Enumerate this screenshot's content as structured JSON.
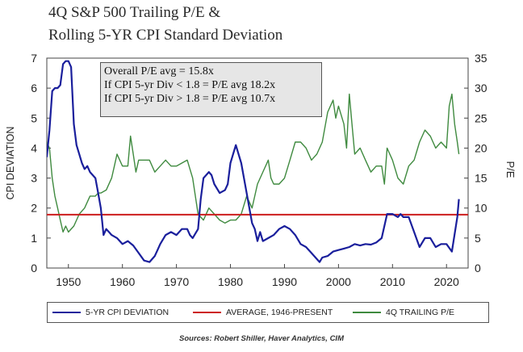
{
  "title": {
    "line1": "4Q S&P 500 Trailing P/E &",
    "line2": "Rolling 5-YR CPI Standard Deviation"
  },
  "annotation": [
    "Overall P/E avg = 15.8x",
    "If CPI 5-yr Div < 1.8 = P/E avg 18.2x",
    "If CPI 5-yr Div > 1.8 = P/E avg 10.7x"
  ],
  "legend": [
    {
      "label": "5-YR CPI DEVIATION",
      "color": "#1a1f9c"
    },
    {
      "label": "AVERAGE, 1946-PRESENT",
      "color": "#cc1c1c"
    },
    {
      "label": "4Q TRAILING P/E",
      "color": "#3f8a3f"
    }
  ],
  "source": "Sources:  Robert Shiller, Haver Analytics, CIM",
  "chart_data": {
    "type": "line",
    "xlim": [
      1946,
      2024
    ],
    "x_ticks": [
      1950,
      1960,
      1970,
      1980,
      1990,
      2000,
      2010,
      2020
    ],
    "left_axis": {
      "label": "CPI DEVIATION",
      "ylim": [
        0,
        7
      ],
      "ticks": [
        0,
        1,
        2,
        3,
        4,
        5,
        6,
        7
      ]
    },
    "right_axis": {
      "label": "P/E",
      "ylim": [
        0,
        35
      ],
      "ticks": [
        0,
        5,
        10,
        15,
        20,
        25,
        30,
        35
      ]
    },
    "grid": false,
    "legend_position": "bottom",
    "series": [
      {
        "name": "5-YR CPI DEVIATION",
        "axis": "left",
        "color": "#1a1f9c",
        "x": [
          1946,
          1946.5,
          1947,
          1947.5,
          1948,
          1948.5,
          1949,
          1949.5,
          1950,
          1950.5,
          1951,
          1951.5,
          1952,
          1952.5,
          1953,
          1953.5,
          1954,
          1955,
          1955.5,
          1956,
          1956.5,
          1957,
          1957.5,
          1958,
          1959,
          1960,
          1961,
          1962,
          1963,
          1964,
          1965,
          1966,
          1966.5,
          1967,
          1968,
          1969,
          1970,
          1971,
          1972,
          1972.5,
          1973,
          1974,
          1974.5,
          1975,
          1976,
          1976.5,
          1977,
          1978,
          1979,
          1979.5,
          1980,
          1981,
          1982,
          1983,
          1984,
          1984.5,
          1985,
          1985.5,
          1986,
          1987,
          1988,
          1989,
          1990,
          1991,
          1992,
          1993,
          1994,
          1995,
          1996,
          1996.5,
          1997,
          1998,
          1999,
          2000,
          2001,
          2002,
          2003,
          2004,
          2005,
          2006,
          2007,
          2008,
          2009,
          2010,
          2011,
          2011.5,
          2012,
          2013,
          2014,
          2015,
          2016,
          2017,
          2018,
          2019,
          2020,
          2021,
          2022,
          2022.3
        ],
        "values": [
          3.7,
          4.6,
          5.9,
          6.0,
          6.0,
          6.1,
          6.8,
          6.9,
          6.9,
          6.7,
          4.8,
          4.1,
          3.8,
          3.5,
          3.3,
          3.4,
          3.2,
          3.0,
          2.5,
          2.0,
          1.1,
          1.3,
          1.2,
          1.1,
          1.0,
          0.8,
          0.9,
          0.75,
          0.5,
          0.25,
          0.2,
          0.4,
          0.6,
          0.8,
          1.1,
          1.2,
          1.1,
          1.3,
          1.3,
          1.1,
          1.0,
          1.3,
          2.3,
          3.0,
          3.2,
          3.1,
          2.8,
          2.5,
          2.6,
          2.8,
          3.5,
          4.1,
          3.5,
          2.5,
          1.5,
          1.3,
          0.9,
          1.2,
          0.9,
          1.0,
          1.1,
          1.3,
          1.4,
          1.3,
          1.1,
          0.8,
          0.7,
          0.5,
          0.3,
          0.2,
          0.35,
          0.4,
          0.55,
          0.6,
          0.65,
          0.7,
          0.8,
          0.75,
          0.8,
          0.78,
          0.85,
          1.0,
          1.8,
          1.8,
          1.7,
          1.8,
          1.7,
          1.7,
          1.2,
          0.7,
          1.0,
          1.0,
          0.7,
          0.8,
          0.8,
          0.55,
          1.7,
          2.3
        ]
      },
      {
        "name": "AVERAGE, 1946-PRESENT",
        "axis": "left",
        "color": "#cc1c1c",
        "x": [
          1946,
          2024
        ],
        "values": [
          1.78,
          1.78
        ]
      },
      {
        "name": "4Q TRAILING P/E",
        "axis": "right",
        "color": "#3f8a3f",
        "x": [
          1946,
          1946.5,
          1947,
          1947.5,
          1948,
          1948.5,
          1949,
          1949.5,
          1950,
          1951,
          1952,
          1953,
          1954,
          1955,
          1955.5,
          1956,
          1957,
          1958,
          1958.5,
          1959,
          1960,
          1961,
          1961.5,
          1962,
          1962.5,
          1963,
          1964,
          1965,
          1966,
          1967,
          1968,
          1969,
          1970,
          1971,
          1972,
          1973,
          1974,
          1975,
          1976,
          1977,
          1978,
          1979,
          1980,
          1981,
          1982,
          1983,
          1984,
          1985,
          1986,
          1987,
          1987.5,
          1988,
          1989,
          1990,
          1991,
          1992,
          1993,
          1994,
          1995,
          1996,
          1997,
          1998,
          1999,
          1999.5,
          2000,
          2001,
          2001.5,
          2002,
          2002.5,
          2003,
          2004,
          2005,
          2006,
          2007,
          2008,
          2008.5,
          2009,
          2010,
          2011,
          2012,
          2013,
          2014,
          2015,
          2016,
          2017,
          2018,
          2019,
          2020,
          2020.5,
          2021,
          2021.5,
          2022,
          2022.3
        ],
        "values": [
          21,
          20,
          15,
          12,
          10,
          8,
          6,
          7,
          6,
          7,
          9,
          10,
          12,
          12,
          12.5,
          12.5,
          13,
          15,
          17,
          19,
          17,
          17,
          22,
          19,
          16,
          18,
          18,
          18,
          16,
          17,
          18,
          17,
          17,
          17.5,
          18,
          15,
          9,
          8,
          10,
          9,
          8,
          7.5,
          8,
          8,
          9,
          12,
          10,
          14,
          16,
          18,
          15,
          14,
          14,
          15,
          18,
          21,
          21,
          20,
          18,
          19,
          21,
          26,
          28,
          25,
          27,
          24,
          20,
          29,
          24,
          19,
          20,
          18,
          16,
          17,
          17,
          14,
          20,
          18,
          15,
          14,
          17,
          18,
          21,
          23,
          22,
          20,
          21,
          20,
          27,
          29,
          24,
          21,
          19
        ]
      }
    ]
  }
}
